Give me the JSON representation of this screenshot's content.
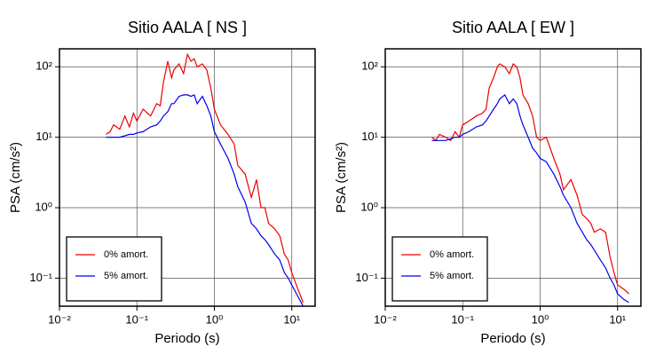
{
  "chart_data": [
    {
      "type": "line",
      "title": "Sitio AALA [ NS ]",
      "x_label": "Periodo (s)",
      "y_label": "PSA (cm/s²)",
      "xscale": "log",
      "yscale": "log",
      "grid": true,
      "legend": "lower left",
      "xlim": [
        0.01,
        20
      ],
      "ylim": [
        0.04,
        180
      ],
      "xticks": [
        {
          "value": 0.01,
          "label": "10⁻²"
        },
        {
          "value": 0.1,
          "label": "10⁻¹"
        },
        {
          "value": 1,
          "label": "10⁰"
        },
        {
          "value": 10,
          "label": "10¹"
        }
      ],
      "yticks": [
        {
          "value": 0.1,
          "label": "10⁻¹"
        },
        {
          "value": 1,
          "label": "10⁰"
        },
        {
          "value": 10,
          "label": "10¹"
        },
        {
          "value": 100,
          "label": "10²"
        }
      ],
      "x": [
        0.04,
        0.045,
        0.05,
        0.06,
        0.07,
        0.08,
        0.09,
        0.1,
        0.12,
        0.15,
        0.18,
        0.2,
        0.22,
        0.25,
        0.28,
        0.3,
        0.35,
        0.4,
        0.45,
        0.5,
        0.55,
        0.6,
        0.7,
        0.8,
        0.9,
        1.0,
        1.2,
        1.5,
        1.8,
        2,
        2.5,
        3,
        3.5,
        4,
        4.5,
        5,
        6,
        7,
        8,
        9,
        10,
        12,
        14
      ],
      "series": [
        {
          "name": "0% amort.",
          "color": "#ee0000",
          "values": [
            11,
            12,
            15,
            13,
            20,
            14,
            22,
            17,
            25,
            20,
            30,
            28,
            60,
            120,
            70,
            90,
            110,
            80,
            150,
            120,
            130,
            100,
            110,
            90,
            50,
            25,
            15,
            11,
            8,
            4,
            3,
            1.4,
            2.5,
            1.0,
            1.0,
            0.6,
            0.5,
            0.4,
            0.22,
            0.18,
            0.12,
            0.07,
            0.045
          ]
        },
        {
          "name": "5% amort.",
          "color": "#0000ee",
          "values": [
            10,
            10,
            10,
            10,
            10.5,
            11,
            11,
            11.5,
            12,
            14,
            15,
            17,
            20,
            23,
            30,
            30,
            38,
            40,
            40,
            38,
            40,
            30,
            38,
            28,
            20,
            12,
            8,
            5,
            3,
            2,
            1.2,
            0.6,
            0.5,
            0.4,
            0.35,
            0.3,
            0.22,
            0.18,
            0.12,
            0.1,
            0.08,
            0.055,
            0.04
          ]
        }
      ]
    },
    {
      "type": "line",
      "title": "Sitio AALA [ EW ]",
      "x_label": "Periodo (s)",
      "y_label": "PSA (cm/s²)",
      "xscale": "log",
      "yscale": "log",
      "grid": true,
      "legend": "lower left",
      "xlim": [
        0.01,
        20
      ],
      "ylim": [
        0.04,
        180
      ],
      "xticks": [
        {
          "value": 0.01,
          "label": "10⁻²"
        },
        {
          "value": 0.1,
          "label": "10⁻¹"
        },
        {
          "value": 1,
          "label": "10⁰"
        },
        {
          "value": 10,
          "label": "10¹"
        }
      ],
      "yticks": [
        {
          "value": 0.1,
          "label": "10⁻¹"
        },
        {
          "value": 1,
          "label": "10⁰"
        },
        {
          "value": 10,
          "label": "10¹"
        },
        {
          "value": 100,
          "label": "10²"
        }
      ],
      "x": [
        0.04,
        0.045,
        0.05,
        0.06,
        0.07,
        0.08,
        0.09,
        0.1,
        0.12,
        0.15,
        0.18,
        0.2,
        0.22,
        0.25,
        0.28,
        0.3,
        0.35,
        0.4,
        0.45,
        0.5,
        0.55,
        0.6,
        0.7,
        0.8,
        0.9,
        1.0,
        1.2,
        1.5,
        1.8,
        2,
        2.5,
        3,
        3.5,
        4,
        4.5,
        5,
        6,
        7,
        8,
        9,
        10,
        12,
        14
      ],
      "series": [
        {
          "name": "0% amort.",
          "color": "#ee0000",
          "values": [
            10,
            9,
            11,
            10,
            9,
            12,
            10,
            15,
            17,
            20,
            22,
            25,
            50,
            70,
            100,
            110,
            100,
            80,
            110,
            100,
            70,
            40,
            30,
            20,
            10,
            9,
            10,
            5,
            3,
            1.8,
            2.5,
            1.5,
            0.8,
            0.7,
            0.6,
            0.45,
            0.5,
            0.45,
            0.2,
            0.12,
            0.08,
            0.07,
            0.06
          ]
        },
        {
          "name": "5% amort.",
          "color": "#0000ee",
          "values": [
            9,
            9,
            9,
            9,
            9.5,
            10,
            10,
            11,
            12,
            14,
            15,
            17,
            20,
            25,
            30,
            35,
            40,
            30,
            35,
            30,
            20,
            15,
            10,
            7,
            6,
            5,
            4.5,
            3,
            2,
            1.5,
            1.0,
            0.6,
            0.45,
            0.35,
            0.3,
            0.25,
            0.18,
            0.14,
            0.1,
            0.08,
            0.06,
            0.05,
            0.045
          ]
        }
      ]
    }
  ]
}
